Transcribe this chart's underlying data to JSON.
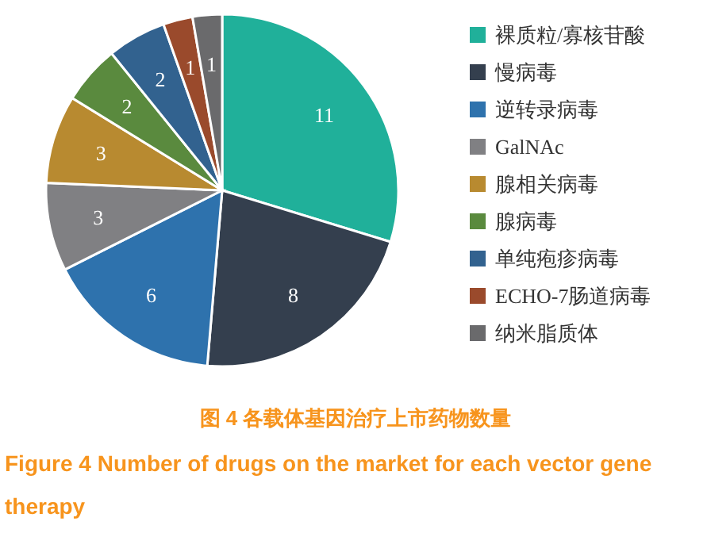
{
  "chart_data": {
    "type": "pie",
    "title": "图 4  各载体基因治疗上市药物数量",
    "subtitle": "Figure 4  Number of drugs on the market for each vector gene therapy",
    "categories": [
      "裸质粒/寡核苷酸",
      "慢病毒",
      "逆转录病毒",
      "GalNAc",
      "腺相关病毒",
      "腺病毒",
      "单纯疱疹病毒",
      "ECHO-7肠道病毒",
      "纳米脂质体"
    ],
    "values": [
      11,
      8,
      6,
      3,
      3,
      2,
      2,
      1,
      1
    ],
    "colors": [
      "#20b09a",
      "#343f4e",
      "#2e72ad",
      "#808083",
      "#b88a30",
      "#5a8a3e",
      "#32628f",
      "#9a4a2c",
      "#6a6a6c"
    ],
    "data_labels": true,
    "legend": "right"
  }
}
